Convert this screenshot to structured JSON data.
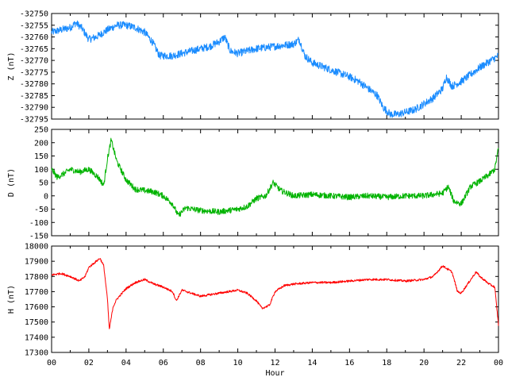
{
  "chart_data": [
    {
      "type": "line",
      "ylabel": "Z (nT)",
      "ylim": [
        -32795,
        -32750
      ],
      "yticks": [
        -32750,
        -32755,
        -32760,
        -32765,
        -32770,
        -32775,
        -32780,
        -32785,
        -32790,
        -32795
      ],
      "color": "#1a8cff",
      "noise": 1.6,
      "series": [
        {
          "x": [
            0,
            0.5,
            1.0,
            1.3,
            1.6,
            2.0,
            2.4,
            3.0,
            3.5,
            4.0,
            4.5,
            5.0,
            5.4,
            5.8,
            6.5,
            7.5,
            8.5,
            9.0,
            9.3,
            9.6,
            10.0,
            11.0,
            12.0,
            13.0,
            13.3,
            13.6,
            14.0,
            15.0,
            16.0,
            16.5,
            17.0,
            17.5,
            17.8,
            18.2,
            18.6,
            19.5,
            20.5,
            21.0,
            21.2,
            21.5,
            22.0,
            23.0,
            24.0
          ],
          "y": [
            -32758,
            -32757,
            -32756,
            -32754,
            -32756,
            -32761,
            -32760,
            -32757,
            -32755,
            -32755,
            -32756,
            -32758,
            -32762,
            -32768,
            -32768,
            -32766,
            -32764,
            -32762,
            -32760,
            -32766,
            -32767,
            -32765,
            -32764,
            -32763,
            -32761,
            -32768,
            -32771,
            -32774,
            -32777,
            -32779,
            -32782,
            -32785,
            -32790,
            -32793,
            -32793,
            -32791,
            -32786,
            -32782,
            -32777,
            -32781,
            -32779,
            -32773,
            -32768
          ]
        }
      ]
    },
    {
      "type": "line",
      "ylabel": "D (nT)",
      "ylim": [
        -150,
        250
      ],
      "yticks": [
        250,
        200,
        150,
        100,
        50,
        0,
        -50,
        -100,
        -150
      ],
      "color": "#00b300",
      "noise": 11,
      "series": [
        {
          "x": [
            0,
            0.3,
            0.7,
            1.0,
            1.5,
            2.0,
            2.5,
            2.8,
            3.0,
            3.2,
            3.5,
            4.0,
            4.5,
            5.0,
            5.5,
            6.0,
            6.5,
            6.8,
            7.2,
            8.0,
            9.0,
            10.0,
            10.5,
            11.0,
            11.5,
            11.9,
            12.3,
            13.0,
            14.0,
            15.0,
            16.0,
            17.0,
            18.0,
            19.0,
            20.0,
            21.0,
            21.3,
            21.6,
            22.0,
            22.5,
            23.0,
            23.5,
            23.8,
            24.0
          ],
          "y": [
            100,
            70,
            85,
            100,
            90,
            100,
            70,
            40,
            140,
            210,
            130,
            60,
            25,
            20,
            15,
            0,
            -30,
            -75,
            -45,
            -55,
            -60,
            -50,
            -40,
            -10,
            0,
            50,
            20,
            0,
            5,
            0,
            -5,
            0,
            -5,
            0,
            0,
            10,
            35,
            -20,
            -30,
            35,
            55,
            80,
            100,
            180
          ]
        }
      ]
    },
    {
      "type": "line",
      "ylabel": "H (nT)",
      "xlabel": "Hour",
      "ylim": [
        17300,
        18000
      ],
      "yticks": [
        18000,
        17900,
        17800,
        17700,
        17600,
        17500,
        17400,
        17300
      ],
      "xlim": [
        0,
        24
      ],
      "xticks": [
        "00",
        "02",
        "04",
        "06",
        "08",
        "10",
        "12",
        "14",
        "16",
        "18",
        "20",
        "22",
        "00"
      ],
      "color": "#ff0000",
      "noise": 7,
      "series": [
        {
          "x": [
            0,
            0.5,
            1.0,
            1.5,
            1.8,
            2.0,
            2.3,
            2.6,
            2.8,
            3.0,
            3.1,
            3.3,
            3.5,
            4.0,
            4.5,
            5.0,
            5.5,
            6.0,
            6.5,
            6.7,
            7.0,
            7.5,
            8.0,
            9.0,
            10.0,
            10.5,
            11.0,
            11.3,
            11.7,
            12.0,
            12.5,
            13.0,
            14.0,
            15.0,
            16.0,
            17.0,
            18.0,
            19.0,
            20.0,
            20.5,
            21.0,
            21.5,
            21.8,
            22.0,
            22.4,
            22.8,
            23.0,
            23.5,
            23.8,
            24.0
          ],
          "y": [
            17810,
            17820,
            17800,
            17770,
            17800,
            17860,
            17890,
            17920,
            17870,
            17650,
            17450,
            17600,
            17650,
            17720,
            17760,
            17780,
            17750,
            17730,
            17700,
            17640,
            17710,
            17690,
            17670,
            17690,
            17710,
            17690,
            17640,
            17590,
            17610,
            17700,
            17740,
            17750,
            17760,
            17760,
            17770,
            17780,
            17780,
            17770,
            17780,
            17800,
            17870,
            17830,
            17700,
            17690,
            17760,
            17830,
            17800,
            17750,
            17730,
            17480
          ]
        }
      ]
    }
  ]
}
